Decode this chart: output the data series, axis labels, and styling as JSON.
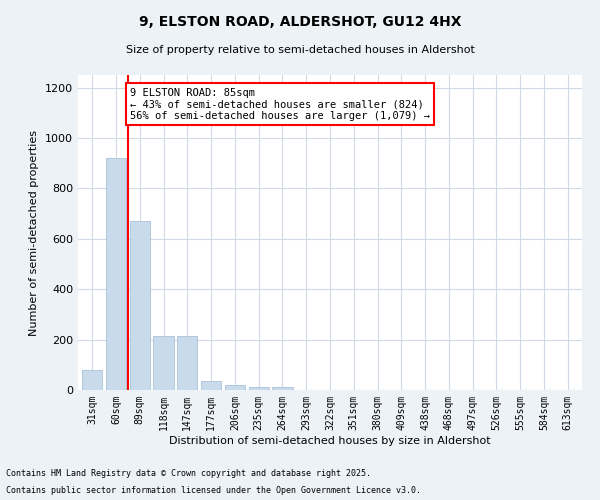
{
  "title1": "9, ELSTON ROAD, ALDERSHOT, GU12 4HX",
  "title2": "Size of property relative to semi-detached houses in Aldershot",
  "xlabel": "Distribution of semi-detached houses by size in Aldershot",
  "ylabel": "Number of semi-detached properties",
  "categories": [
    "31sqm",
    "60sqm",
    "89sqm",
    "118sqm",
    "147sqm",
    "177sqm",
    "206sqm",
    "235sqm",
    "264sqm",
    "293sqm",
    "322sqm",
    "351sqm",
    "380sqm",
    "409sqm",
    "438sqm",
    "468sqm",
    "497sqm",
    "526sqm",
    "555sqm",
    "584sqm",
    "613sqm"
  ],
  "values": [
    80,
    920,
    670,
    215,
    215,
    35,
    20,
    12,
    12,
    0,
    0,
    0,
    0,
    0,
    0,
    0,
    0,
    0,
    0,
    0,
    0
  ],
  "bar_color": "#c9daea",
  "bar_edge_color": "#b0c8de",
  "vline_x": 1.5,
  "vline_color": "red",
  "ylim": [
    0,
    1250
  ],
  "yticks": [
    0,
    200,
    400,
    600,
    800,
    1000,
    1200
  ],
  "annotation_text": "9 ELSTON ROAD: 85sqm\n← 43% of semi-detached houses are smaller (824)\n56% of semi-detached houses are larger (1,079) →",
  "footnote1": "Contains HM Land Registry data © Crown copyright and database right 2025.",
  "footnote2": "Contains public sector information licensed under the Open Government Licence v3.0.",
  "bg_color": "#edf2f7",
  "plot_bg_color": "#ffffff",
  "grid_color": "#d0dae4"
}
